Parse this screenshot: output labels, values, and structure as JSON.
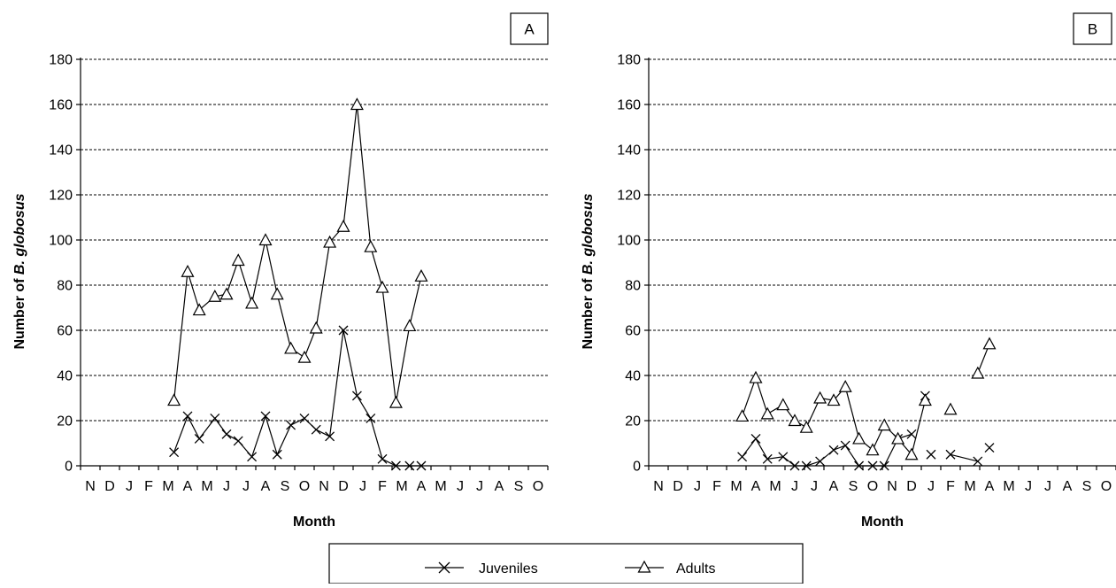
{
  "chart_data": [
    {
      "type": "line",
      "panel": "A",
      "ylabel_prefix": "Number of ",
      "ylabel_italic": "B. globosus",
      "xlabel": "Month",
      "ylim": [
        0,
        180
      ],
      "yticks": [
        0,
        20,
        40,
        60,
        80,
        100,
        120,
        140,
        160,
        180
      ],
      "grid": true,
      "categories": [
        "N",
        "D",
        "J",
        "F",
        "M",
        "A",
        "M",
        "J",
        "J",
        "A",
        "S",
        "O",
        "N",
        "D",
        "J",
        "F",
        "M",
        "A",
        "M",
        "J",
        "J",
        "A",
        "S",
        "O"
      ],
      "series": [
        {
          "name": "Juveniles",
          "marker": "x",
          "points": [
            [
              4.3,
              6
            ],
            [
              5,
              22
            ],
            [
              5.6,
              12
            ],
            [
              6.4,
              21
            ],
            [
              7,
              14
            ],
            [
              7.6,
              11
            ],
            [
              8.3,
              4
            ],
            [
              9,
              22
            ],
            [
              9.6,
              5
            ],
            [
              10.3,
              18
            ],
            [
              11,
              21
            ],
            [
              11.6,
              16
            ],
            [
              12.3,
              13
            ],
            [
              13,
              60
            ],
            [
              13.7,
              31
            ],
            [
              14.4,
              21
            ],
            [
              15,
              3
            ],
            [
              15.7,
              0
            ],
            [
              16.4,
              0
            ],
            [
              17,
              0
            ]
          ],
          "segments": [
            [
              0,
              19
            ]
          ]
        },
        {
          "name": "Adults",
          "marker": "triangle",
          "points": [
            [
              4.3,
              29
            ],
            [
              5,
              86
            ],
            [
              5.6,
              69
            ],
            [
              6.4,
              75
            ],
            [
              7,
              76
            ],
            [
              7.6,
              91
            ],
            [
              8.3,
              72
            ],
            [
              9,
              100
            ],
            [
              9.6,
              76
            ],
            [
              10.3,
              52
            ],
            [
              11,
              48
            ],
            [
              11.6,
              61
            ],
            [
              12.3,
              99
            ],
            [
              13,
              106
            ],
            [
              13.7,
              160
            ],
            [
              14.4,
              97
            ],
            [
              15,
              79
            ],
            [
              15.7,
              28
            ],
            [
              16.4,
              62
            ],
            [
              17,
              84
            ]
          ],
          "segments": [
            [
              0,
              19
            ]
          ]
        }
      ]
    },
    {
      "type": "line",
      "panel": "B",
      "ylabel_prefix": "Number of ",
      "ylabel_italic": "B. globosus",
      "xlabel": "Month",
      "ylim": [
        0,
        180
      ],
      "yticks": [
        0,
        20,
        40,
        60,
        80,
        100,
        120,
        140,
        160,
        180
      ],
      "grid": true,
      "categories": [
        "N",
        "D",
        "J",
        "F",
        "M",
        "A",
        "M",
        "J",
        "J",
        "A",
        "S",
        "O",
        "N",
        "D",
        "J",
        "F",
        "M",
        "A",
        "M",
        "J",
        "J",
        "A",
        "S",
        "O"
      ],
      "series": [
        {
          "name": "Juveniles",
          "marker": "x",
          "points": [
            [
              4.3,
              4
            ],
            [
              5,
              12
            ],
            [
              5.6,
              3
            ],
            [
              6.4,
              4
            ],
            [
              7,
              0
            ],
            [
              7.6,
              0
            ],
            [
              8.3,
              2
            ],
            [
              9,
              7
            ],
            [
              9.6,
              9
            ],
            [
              10.3,
              0
            ],
            [
              11,
              0
            ],
            [
              11.6,
              0
            ],
            [
              12.3,
              12
            ],
            [
              13,
              14
            ],
            [
              13.7,
              31
            ],
            [
              14,
              5
            ],
            [
              15,
              5
            ],
            [
              16.4,
              2
            ],
            [
              17,
              8
            ]
          ],
          "segments": [
            [
              0,
              13
            ],
            [
              14,
              14
            ],
            [
              15,
              15
            ],
            [
              16,
              17
            ]
          ]
        },
        {
          "name": "Adults",
          "marker": "triangle",
          "points": [
            [
              4.3,
              22
            ],
            [
              5,
              39
            ],
            [
              5.6,
              23
            ],
            [
              6.4,
              27
            ],
            [
              7,
              20
            ],
            [
              7.6,
              17
            ],
            [
              8.3,
              30
            ],
            [
              9,
              29
            ],
            [
              9.6,
              35
            ],
            [
              10.3,
              12
            ],
            [
              11,
              7
            ],
            [
              11.6,
              18
            ],
            [
              12.3,
              12
            ],
            [
              13,
              5
            ],
            [
              13.7,
              29
            ],
            [
              15,
              25
            ],
            [
              16.4,
              41
            ],
            [
              17,
              54
            ]
          ],
          "segments": [
            [
              0,
              14
            ],
            [
              15,
              15
            ],
            [
              16,
              17
            ]
          ]
        }
      ]
    }
  ],
  "legend": {
    "items": [
      {
        "label": "Juveniles",
        "marker": "x"
      },
      {
        "label": "Adults",
        "marker": "triangle"
      }
    ],
    "placement": "bottom-center"
  }
}
